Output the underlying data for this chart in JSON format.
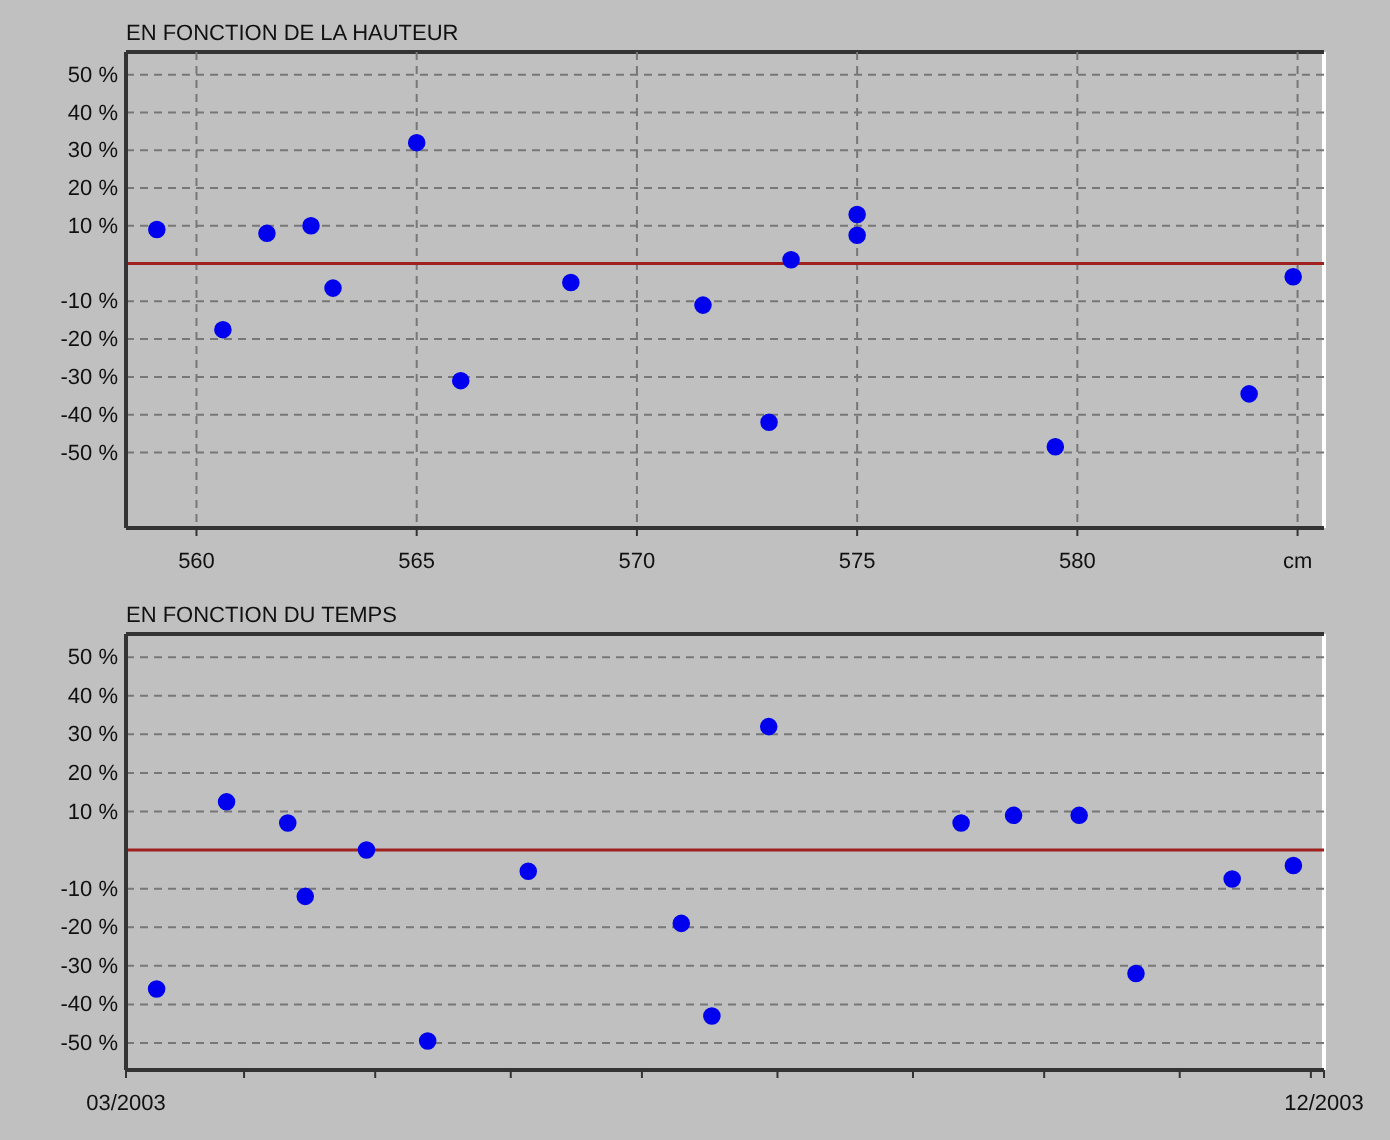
{
  "chart_data": [
    {
      "type": "scatter",
      "title": "EN FONCTION DE LA HAUTEUR",
      "marker": "circle",
      "grid": true,
      "x": [
        559.1,
        560.6,
        561.6,
        562.6,
        563.1,
        565.0,
        566.0,
        568.5,
        571.5,
        573.0,
        573.5,
        575.0,
        575.0,
        579.5,
        583.9,
        584.9
      ],
      "series": [
        {
          "color": "#0000ee",
          "values": [
            9,
            -17.5,
            8,
            10,
            -6.5,
            32,
            -31,
            -5,
            -11,
            -42,
            1,
            13,
            7.5,
            -48.5,
            -34.5,
            -3.5
          ]
        }
      ],
      "xlim": [
        558.4,
        585.6
      ],
      "xticks": [
        560,
        565,
        570,
        575,
        580,
        {
          "value": 585,
          "label": "cm"
        }
      ],
      "ylim": [
        -70,
        56
      ],
      "yticks": [
        {
          "value": 50,
          "label": "50 %"
        },
        {
          "value": 40,
          "label": "40 %"
        },
        {
          "value": 30,
          "label": "30 %"
        },
        {
          "value": 20,
          "label": "20 %"
        },
        {
          "value": 10,
          "label": "10 %"
        },
        {
          "value": -10,
          "label": "-10 %"
        },
        {
          "value": -20,
          "label": "-20 %"
        },
        {
          "value": -30,
          "label": "-30 %"
        },
        {
          "value": -40,
          "label": "-40 %"
        },
        {
          "value": -50,
          "label": "-50 %"
        }
      ],
      "ref_lines": [
        {
          "axis": "y",
          "value": 0,
          "color": "#a02020"
        }
      ]
    },
    {
      "type": "scatter",
      "title": "EN FONCTION DU TEMPS",
      "marker": "circle",
      "grid": "y",
      "x": [
        "2003-03-12",
        "2003-03-28",
        "2003-04-11",
        "2003-04-15",
        "2003-04-29",
        "2003-05-13",
        "2003-06-05",
        "2003-07-10",
        "2003-07-17",
        "2003-07-30",
        "2003-09-12",
        "2003-09-24",
        "2003-10-09",
        "2003-10-22",
        "2003-11-13",
        "2003-11-27"
      ],
      "series": [
        {
          "color": "#0000ee",
          "values": [
            -36,
            12.5,
            7,
            -12,
            0,
            -49.5,
            -5.5,
            -19,
            -43,
            32,
            7,
            9,
            9,
            -32,
            -7.5,
            -4
          ]
        }
      ],
      "xlim": [
        "2003-03-05",
        "2003-12-04"
      ],
      "xticks": [
        {
          "value": "2003-03-05",
          "label": "03/2003"
        },
        {
          "value": "2003-04-01",
          "label": null
        },
        {
          "value": "2003-05-01",
          "label": null
        },
        {
          "value": "2003-06-01",
          "label": null
        },
        {
          "value": "2003-07-01",
          "label": null
        },
        {
          "value": "2003-08-01",
          "label": null
        },
        {
          "value": "2003-09-01",
          "label": null
        },
        {
          "value": "2003-10-01",
          "label": null
        },
        {
          "value": "2003-11-01",
          "label": null
        },
        {
          "value": "2003-12-01",
          "label": null
        },
        {
          "value": "2003-12-04",
          "label": "12/2003"
        }
      ],
      "ylim": [
        -57,
        56
      ],
      "yticks": [
        {
          "value": 50,
          "label": "50 %"
        },
        {
          "value": 40,
          "label": "40 %"
        },
        {
          "value": 30,
          "label": "30 %"
        },
        {
          "value": 20,
          "label": "20 %"
        },
        {
          "value": 10,
          "label": "10 %"
        },
        {
          "value": -10,
          "label": "-10 %"
        },
        {
          "value": -20,
          "label": "-20 %"
        },
        {
          "value": -30,
          "label": "-30 %"
        },
        {
          "value": -40,
          "label": "-40 %"
        },
        {
          "value": -50,
          "label": "-50 %"
        }
      ],
      "ref_lines": [
        {
          "axis": "y",
          "value": 0,
          "color": "#a02020"
        }
      ]
    }
  ]
}
